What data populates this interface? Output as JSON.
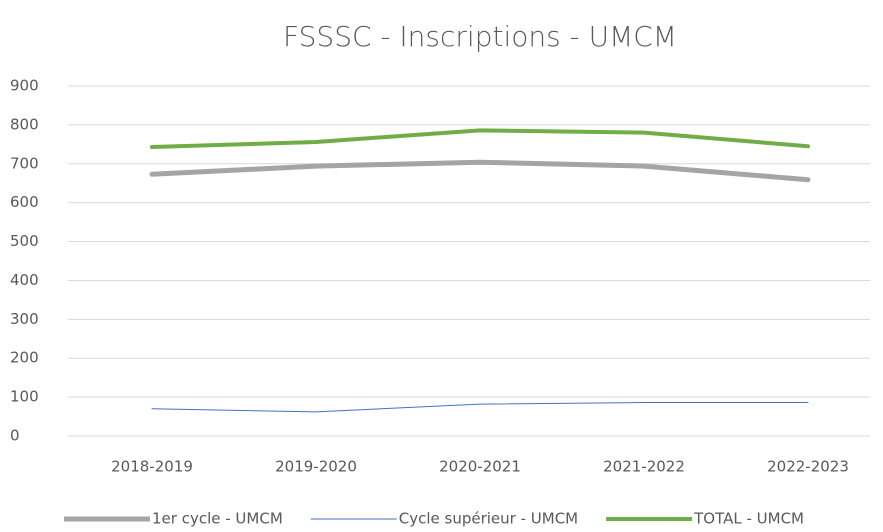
{
  "chart_data": {
    "type": "line",
    "title": "FSSSC - Inscriptions - UMCM",
    "categories": [
      "2018-2019",
      "2019-2020",
      "2020-2021",
      "2021-2022",
      "2022-2023"
    ],
    "series": [
      {
        "name": "1er cycle - UMCM",
        "color": "#a5a5a5",
        "line_width": 5,
        "values": [
          673,
          694,
          704,
          694,
          659
        ]
      },
      {
        "name": "Cycle supérieur - UMCM",
        "color": "#4472c4",
        "line_width": 1,
        "values": [
          70,
          62,
          82,
          86,
          86
        ]
      },
      {
        "name": "TOTAL - UMCM",
        "color": "#70ad47",
        "line_width": 4,
        "values": [
          743,
          756,
          786,
          780,
          745
        ]
      }
    ],
    "ylim": [
      0,
      900
    ],
    "yticks": [
      0,
      100,
      200,
      300,
      400,
      500,
      600,
      700,
      800,
      900
    ],
    "grid": true,
    "legend": "bottom"
  }
}
